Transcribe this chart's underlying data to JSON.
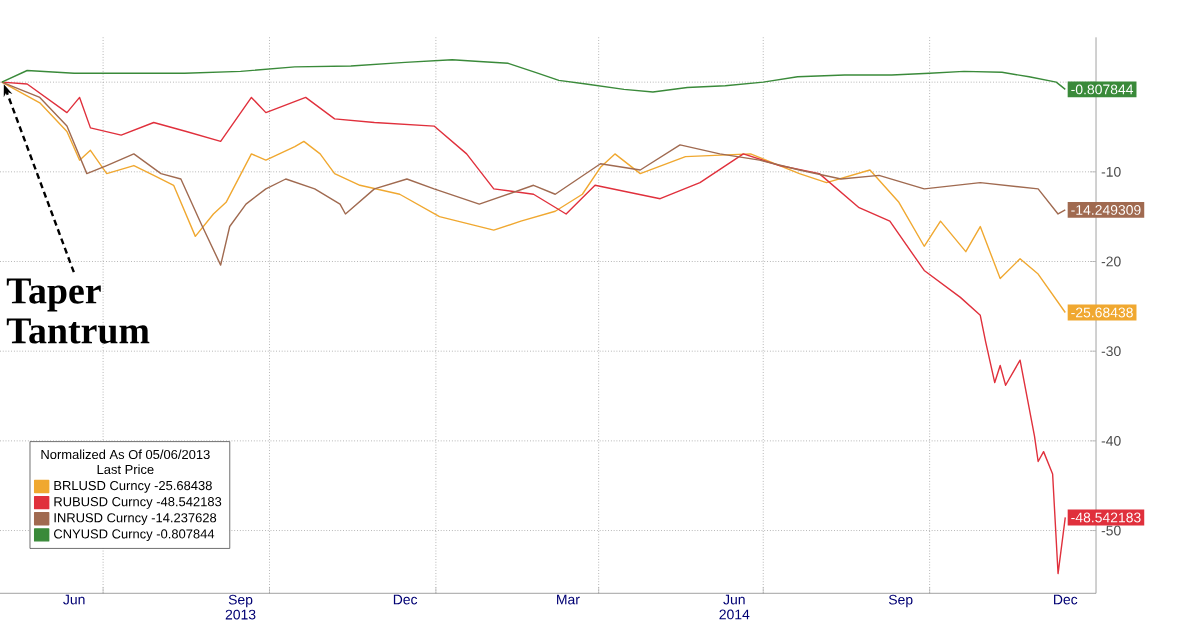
{
  "chart_data": {
    "type": "line",
    "xlim": [
      "2013-05-05",
      "2015-01-01"
    ],
    "ylim": [
      -57,
      5
    ],
    "xticks": [
      {
        "value": "2013-06-15",
        "label": "Jun"
      },
      {
        "value": "2013-07-01",
        "label": null
      },
      {
        "value": "2013-09-15",
        "label": "Sep 2013"
      },
      {
        "value": "2013-10-01",
        "label": null
      },
      {
        "value": "2013-12-15",
        "label": "Dec"
      },
      {
        "value": "2014-01-01",
        "label": null
      },
      {
        "value": "2014-03-15",
        "label": "Mar"
      },
      {
        "value": "2014-04-01",
        "label": null
      },
      {
        "value": "2014-06-15",
        "label": "Jun 2014"
      },
      {
        "value": "2014-07-01",
        "label": null
      },
      {
        "value": "2014-09-15",
        "label": "Sep"
      },
      {
        "value": "2014-10-01",
        "label": null
      },
      {
        "value": "2014-12-15",
        "label": "Dec"
      }
    ],
    "yticks": [
      {
        "value": 0,
        "label": null
      },
      -10,
      -20,
      -30,
      -40,
      -50
    ],
    "grid": true,
    "legend": "bottom left",
    "legend_title": "Normalized As Of 05/06/2013 Last Price",
    "annotations": [
      {
        "text": "Taper Tantrum",
        "x": "2013-05-06",
        "y": 0
      }
    ],
    "series": [
      {
        "name": "BRLUSD Curncy -25.68438",
        "color": "#f0a830",
        "x": [
          "2013-05-06",
          "2013-05-27",
          "2013-06-11",
          "2013-06-18",
          "2013-06-24",
          "2013-07-03",
          "2013-07-18",
          "2013-07-29",
          "2013-08-09",
          "2013-08-21",
          "2013-08-31",
          "2013-09-07",
          "2013-09-21",
          "2013-09-29",
          "2013-10-15",
          "2013-10-20",
          "2013-10-29",
          "2013-11-06",
          "2013-11-20",
          "2013-12-12",
          "2014-01-03",
          "2014-02-02",
          "2014-02-17",
          "2014-03-08",
          "2014-03-23",
          "2014-04-02",
          "2014-04-10",
          "2014-04-24",
          "2014-05-19",
          "2014-06-24",
          "2014-07-21",
          "2014-08-05",
          "2014-08-29",
          "2014-09-14",
          "2014-09-28",
          "2014-10-07",
          "2014-10-21",
          "2014-10-29",
          "2014-11-09",
          "2014-11-20",
          "2014-11-30",
          "2014-12-15"
        ],
        "values": [
          0,
          -2.3,
          -5.5,
          -8.7,
          -7.6,
          -10.2,
          -9.3,
          -10.4,
          -11.5,
          -17.2,
          -14.7,
          -13.4,
          -8,
          -8.7,
          -7.2,
          -6.6,
          -8,
          -10.2,
          -11.5,
          -12.5,
          -15,
          -16.5,
          -15.5,
          -14.4,
          -12.5,
          -9.5,
          -8,
          -10.2,
          -8.3,
          -8,
          -10.2,
          -11.2,
          -9.8,
          -13.4,
          -18.3,
          -15.5,
          -18.9,
          -16.1,
          -21.9,
          -19.7,
          -21.4,
          -25.68438
        ],
        "value_labels": [
          null,
          null,
          null,
          null,
          null,
          null,
          null,
          null,
          null,
          null,
          null,
          null,
          null,
          null,
          null,
          null,
          null,
          null,
          null,
          null,
          null,
          null,
          null,
          null,
          null,
          null,
          null,
          null,
          null,
          null,
          null,
          null,
          null,
          null,
          null,
          null,
          null,
          null,
          null,
          null,
          null,
          "-25.68438"
        ]
      },
      {
        "name": "RUBUSD Curncy -48.542183",
        "color": "#e0303c",
        "x": [
          "2013-05-06",
          "2013-05-20",
          "2013-06-11",
          "2013-06-18",
          "2013-06-24",
          "2013-07-11",
          "2013-07-29",
          "2013-08-16",
          "2013-09-04",
          "2013-09-21",
          "2013-09-29",
          "2013-10-21",
          "2013-11-06",
          "2013-11-28",
          "2013-12-31",
          "2014-01-18",
          "2014-02-02",
          "2014-02-24",
          "2014-03-14",
          "2014-03-30",
          "2014-05-05",
          "2014-05-27",
          "2014-06-20",
          "2014-07-10",
          "2014-08-01",
          "2014-08-23",
          "2014-09-09",
          "2014-09-28",
          "2014-10-18",
          "2014-10-29",
          "2014-11-01",
          "2014-11-06",
          "2014-11-09",
          "2014-11-12",
          "2014-11-20",
          "2014-11-28",
          "2014-11-30",
          "2014-12-03",
          "2014-12-08",
          "2014-12-11",
          "2014-12-15"
        ],
        "values": [
          0,
          -0.2,
          -3.4,
          -1.7,
          -5.1,
          -5.9,
          -4.5,
          -5.5,
          -6.6,
          -1.7,
          -3.4,
          -1.7,
          -4.1,
          -4.5,
          -4.9,
          -8,
          -11.9,
          -12.5,
          -14.7,
          -11.5,
          -13,
          -11.2,
          -8,
          -9.3,
          -10.2,
          -14,
          -15.5,
          -21,
          -24,
          -26,
          -29,
          -33.5,
          -31.6,
          -33.8,
          -31,
          -39.5,
          -42.3,
          -41.2,
          -43.7,
          -54.8,
          -48.542183
        ],
        "value_labels": [
          null,
          null,
          null,
          null,
          null,
          null,
          null,
          null,
          null,
          null,
          null,
          null,
          null,
          null,
          null,
          null,
          null,
          null,
          null,
          null,
          null,
          null,
          null,
          null,
          null,
          null,
          null,
          null,
          null,
          null,
          null,
          null,
          null,
          null,
          null,
          null,
          null,
          null,
          null,
          null,
          "-48.542183"
        ]
      },
      {
        "name": "INRUSD Curncy -14.237628",
        "color": "#a06a50",
        "x": [
          "2013-05-06",
          "2013-05-27",
          "2013-06-11",
          "2013-06-22",
          "2013-07-03",
          "2013-07-18",
          "2013-08-02",
          "2013-08-13",
          "2013-08-24",
          "2013-09-04",
          "2013-09-09",
          "2013-09-18",
          "2013-09-29",
          "2013-10-10",
          "2013-10-26",
          "2013-11-09",
          "2013-11-12",
          "2013-11-28",
          "2013-12-16",
          "2013-12-31",
          "2014-01-25",
          "2014-02-24",
          "2014-03-08",
          "2014-04-02",
          "2014-04-24",
          "2014-05-16",
          "2014-06-07",
          "2014-06-29",
          "2014-07-21",
          "2014-08-13",
          "2014-09-03",
          "2014-09-28",
          "2014-10-29",
          "2014-11-30",
          "2014-12-11",
          "2014-12-15"
        ],
        "values": [
          0,
          -1.7,
          -4.9,
          -10.2,
          -9.3,
          -8,
          -10.2,
          -10.8,
          -15.7,
          -20.4,
          -16.1,
          -13.6,
          -11.9,
          -10.8,
          -11.9,
          -13.6,
          -14.7,
          -11.9,
          -10.8,
          -11.9,
          -13.6,
          -11.5,
          -12.5,
          -9.1,
          -9.8,
          -7,
          -8,
          -8.7,
          -9.8,
          -10.8,
          -10.4,
          -11.9,
          -11.2,
          -11.9,
          -14.7,
          -14.249309
        ],
        "value_labels": [
          null,
          null,
          null,
          null,
          null,
          null,
          null,
          null,
          null,
          null,
          null,
          null,
          null,
          null,
          null,
          null,
          null,
          null,
          null,
          null,
          null,
          null,
          null,
          null,
          null,
          null,
          null,
          null,
          null,
          null,
          null,
          null,
          null,
          null,
          null,
          "-14.249309"
        ]
      },
      {
        "name": "CNYUSD Curncy -0.807844",
        "color": "#3a8a3a",
        "x": [
          "2013-05-06",
          "2013-05-20",
          "2013-06-15",
          "2013-07-15",
          "2013-08-15",
          "2013-09-15",
          "2013-10-15",
          "2013-11-15",
          "2013-12-15",
          "2014-01-10",
          "2014-01-25",
          "2014-02-10",
          "2014-02-25",
          "2014-03-10",
          "2014-03-25",
          "2014-04-15",
          "2014-05-01",
          "2014-05-20",
          "2014-06-10",
          "2014-07-01",
          "2014-07-20",
          "2014-08-15",
          "2014-09-10",
          "2014-10-01",
          "2014-10-20",
          "2014-11-10",
          "2014-11-25",
          "2014-12-10",
          "2014-12-15"
        ],
        "values": [
          0,
          1.3,
          1,
          1,
          1,
          1.2,
          1.7,
          1.8,
          2.2,
          2.5,
          2.3,
          2.1,
          1.1,
          0.2,
          -0.2,
          -0.8,
          -1.1,
          -0.6,
          -0.4,
          0,
          0.6,
          0.8,
          0.8,
          1,
          1.2,
          1.1,
          0.6,
          0,
          -0.807844
        ],
        "value_labels": [
          null,
          null,
          null,
          null,
          null,
          null,
          null,
          null,
          null,
          null,
          null,
          null,
          null,
          null,
          null,
          null,
          null,
          null,
          null,
          null,
          null,
          null,
          null,
          null,
          null,
          null,
          null,
          null,
          "-0.807844"
        ]
      }
    ]
  }
}
